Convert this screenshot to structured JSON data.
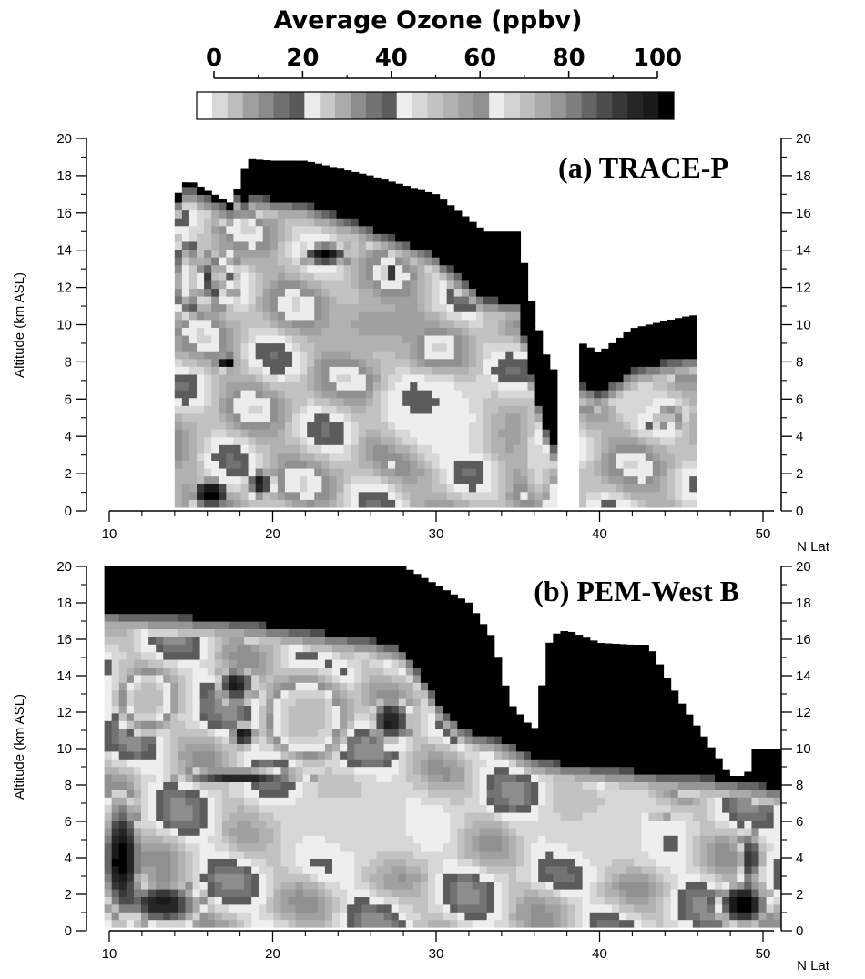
{
  "chart_data": {
    "type": "heatmap",
    "colorbar": {
      "title": "Average Ozone (ppbv)",
      "tick_labels": [
        "0",
        "20",
        "40",
        "60",
        "80",
        "100"
      ],
      "range": [
        0,
        100
      ],
      "bands": [
        {
          "min": 0,
          "max": 20,
          "colors": [
            "#ffffff",
            "#d8d8d8",
            "#bdbdbd",
            "#9f9f9f",
            "#8a8a8a",
            "#6f6f6f",
            "#595959"
          ]
        },
        {
          "min": 20,
          "max": 40,
          "colors": [
            "#ebebeb",
            "#c8c8c8",
            "#ababab",
            "#8d8d8d",
            "#737373",
            "#5c5c5c"
          ]
        },
        {
          "min": 40,
          "max": 60,
          "colors": [
            "#eeeeee",
            "#d7d7d7",
            "#c2c2c2",
            "#b1b1b1",
            "#a0a0a0",
            "#909090"
          ]
        },
        {
          "min": 60,
          "max": 100,
          "colors": [
            "#ececec",
            "#d2d2d2",
            "#bebebe",
            "#aaaaaa",
            "#969696",
            "#7f7f7f",
            "#656565",
            "#4d4d4d",
            "#383838",
            "#262626",
            "#1a1a1a",
            "#000000"
          ]
        }
      ]
    },
    "panels": [
      {
        "title": "(a) TRACE-P",
        "ylabel": "Altitude (km ASL)",
        "xlabel": "N Lat",
        "xlim": [
          10,
          50
        ],
        "ylim": [
          0,
          20
        ],
        "x_ticks": [
          "10",
          "20",
          "30",
          "40",
          "50"
        ],
        "y_ticks": [
          "0",
          "2",
          "4",
          "6",
          "8",
          "10",
          "12",
          "14",
          "16",
          "18",
          "20"
        ],
        "coverage_top_km": [
          [
            14.0,
            16.8
          ],
          [
            14.8,
            17.8
          ],
          [
            16.0,
            17.2
          ],
          [
            17.5,
            16.5
          ],
          [
            18.5,
            18.9
          ],
          [
            20.0,
            18.8
          ],
          [
            22.0,
            18.8
          ],
          [
            24.5,
            18.3
          ],
          [
            26.0,
            18.0
          ],
          [
            28.0,
            17.5
          ],
          [
            30.0,
            17.0
          ],
          [
            31.5,
            16.0
          ],
          [
            33.0,
            15.0
          ],
          [
            35.0,
            15.0
          ],
          [
            36.0,
            10.5
          ],
          [
            37.0,
            7.6
          ],
          [
            38.5,
            7.6
          ],
          [
            38.5,
            9.2
          ],
          [
            40.0,
            8.5
          ],
          [
            42.0,
            9.8
          ],
          [
            44.0,
            10.2
          ],
          [
            45.6,
            10.5
          ]
        ],
        "coverage_gaps_lat": [
          [
            37.4,
            38.4
          ],
          [
            38.5,
            38.7
          ]
        ],
        "coverage_lat_range": [
          14.0,
          45.6
        ],
        "features": [
          {
            "lat": 14.5,
            "alt": 12.5,
            "value": 20,
            "rx": 1.0,
            "ry": 2.5
          },
          {
            "lat": 16.5,
            "alt": 12.5,
            "value": 100,
            "rx": 1.5,
            "ry": 1.8
          },
          {
            "lat": 16.8,
            "alt": 12.6,
            "value": 22,
            "rx": 0.7,
            "ry": 1.5
          },
          {
            "lat": 23.0,
            "alt": 13.8,
            "value": 100,
            "rx": 1.8,
            "ry": 0.8
          },
          {
            "lat": 17.0,
            "alt": 8.0,
            "value": 100,
            "rx": 0.8,
            "ry": 0.6
          },
          {
            "lat": 27.0,
            "alt": 12.8,
            "value": 100,
            "rx": 0.5,
            "ry": 0.4
          },
          {
            "lat": 16.0,
            "alt": 1.0,
            "value": 100,
            "rx": 1.5,
            "ry": 1.0
          },
          {
            "lat": 19.0,
            "alt": 1.5,
            "value": 95,
            "rx": 1.0,
            "ry": 1.0
          },
          {
            "lat": 44.0,
            "alt": 5.0,
            "value": 70,
            "rx": 1.0,
            "ry": 0.8
          },
          {
            "lat": 42.0,
            "alt": 6.0,
            "value": 45,
            "rx": 2.0,
            "ry": 1.5
          },
          {
            "lat": 30.0,
            "alt": 5.0,
            "value": 40,
            "rx": 5.0,
            "ry": 3.0
          },
          {
            "lat": 36.0,
            "alt": 2.0,
            "value": 45,
            "rx": 1.0,
            "ry": 2.0
          },
          {
            "lat": 26.0,
            "alt": 10.0,
            "value": 55,
            "rx": 4.0,
            "ry": 2.0
          }
        ],
        "default_value": 50
      },
      {
        "title": "(b) PEM-West B",
        "ylabel": "Altitude (km ASL)",
        "xlabel": "N Lat",
        "xlim": [
          10,
          50
        ],
        "ylim": [
          0,
          20
        ],
        "x_ticks": [
          "10",
          "20",
          "30",
          "40",
          "50"
        ],
        "y_ticks": [
          "0",
          "2",
          "4",
          "6",
          "8",
          "10",
          "12",
          "14",
          "16",
          "18",
          "20"
        ],
        "coverage_top_km": [
          [
            9.7,
            20.0
          ],
          [
            51.0,
            20.0
          ]
        ],
        "black_top_boundary_km": [
          [
            9.7,
            17.5
          ],
          [
            14.0,
            17.3
          ],
          [
            18.0,
            17.0
          ],
          [
            22.0,
            16.5
          ],
          [
            26.0,
            16.0
          ],
          [
            28.0,
            15.5
          ],
          [
            29.5,
            13.5
          ],
          [
            30.5,
            12.0
          ],
          [
            32.0,
            11.0
          ],
          [
            34.0,
            10.5
          ],
          [
            36.0,
            9.5
          ],
          [
            38.0,
            9.2
          ],
          [
            40.0,
            9.0
          ],
          [
            42.0,
            8.8
          ],
          [
            44.0,
            8.6
          ],
          [
            46.0,
            8.5
          ],
          [
            48.0,
            8.3
          ],
          [
            50.0,
            8.0
          ],
          [
            51.0,
            7.8
          ]
        ],
        "black_top_coverage_km": [
          [
            9.7,
            20.0
          ],
          [
            11.0,
            20.0
          ],
          [
            28.0,
            20.0
          ],
          [
            30.0,
            19.0
          ],
          [
            32.0,
            18.0
          ],
          [
            33.5,
            16.0
          ],
          [
            34.5,
            12.5
          ],
          [
            36.0,
            11.0
          ],
          [
            37.0,
            16.2
          ],
          [
            38.0,
            16.5
          ],
          [
            40.0,
            15.8
          ],
          [
            42.0,
            15.7
          ],
          [
            43.0,
            15.7
          ],
          [
            45.0,
            12.5
          ],
          [
            46.5,
            10.5
          ],
          [
            48.0,
            8.5
          ],
          [
            49.0,
            8.5
          ],
          [
            49.5,
            10.0
          ],
          [
            50.5,
            10.0
          ],
          [
            51.0,
            10.0
          ]
        ],
        "features": [
          {
            "lat": 10.5,
            "alt": 4.0,
            "value": 100,
            "rx": 1.5,
            "ry": 4.0
          },
          {
            "lat": 13.0,
            "alt": 1.5,
            "value": 95,
            "rx": 3.0,
            "ry": 1.5
          },
          {
            "lat": 12.0,
            "alt": 12.5,
            "value": 70,
            "rx": 2.0,
            "ry": 2.0
          },
          {
            "lat": 17.5,
            "alt": 13.5,
            "value": 95,
            "rx": 1.5,
            "ry": 1.2
          },
          {
            "lat": 18.0,
            "alt": 10.8,
            "value": 100,
            "rx": 0.8,
            "ry": 0.8
          },
          {
            "lat": 22.0,
            "alt": 12.0,
            "value": 70,
            "rx": 3.0,
            "ry": 3.0
          },
          {
            "lat": 27.0,
            "alt": 11.5,
            "value": 95,
            "rx": 1.5,
            "ry": 1.5
          },
          {
            "lat": 30.0,
            "alt": 12.5,
            "value": 100,
            "rx": 0.5,
            "ry": 0.5
          },
          {
            "lat": 25.0,
            "alt": 6.0,
            "value": 45,
            "rx": 8.0,
            "ry": 3.5
          },
          {
            "lat": 40.0,
            "alt": 5.5,
            "value": 45,
            "rx": 6.0,
            "ry": 3.0
          },
          {
            "lat": 43.5,
            "alt": 6.2,
            "value": 70,
            "rx": 0.6,
            "ry": 0.3
          },
          {
            "lat": 48.5,
            "alt": 1.5,
            "value": 100,
            "rx": 2.0,
            "ry": 1.5
          },
          {
            "lat": 49.0,
            "alt": 4.0,
            "value": 90,
            "rx": 0.8,
            "ry": 2.0
          },
          {
            "lat": 18.0,
            "alt": 8.5,
            "value": 95,
            "rx": 5.0,
            "ry": 0.5
          }
        ],
        "default_value": 45
      }
    ]
  }
}
